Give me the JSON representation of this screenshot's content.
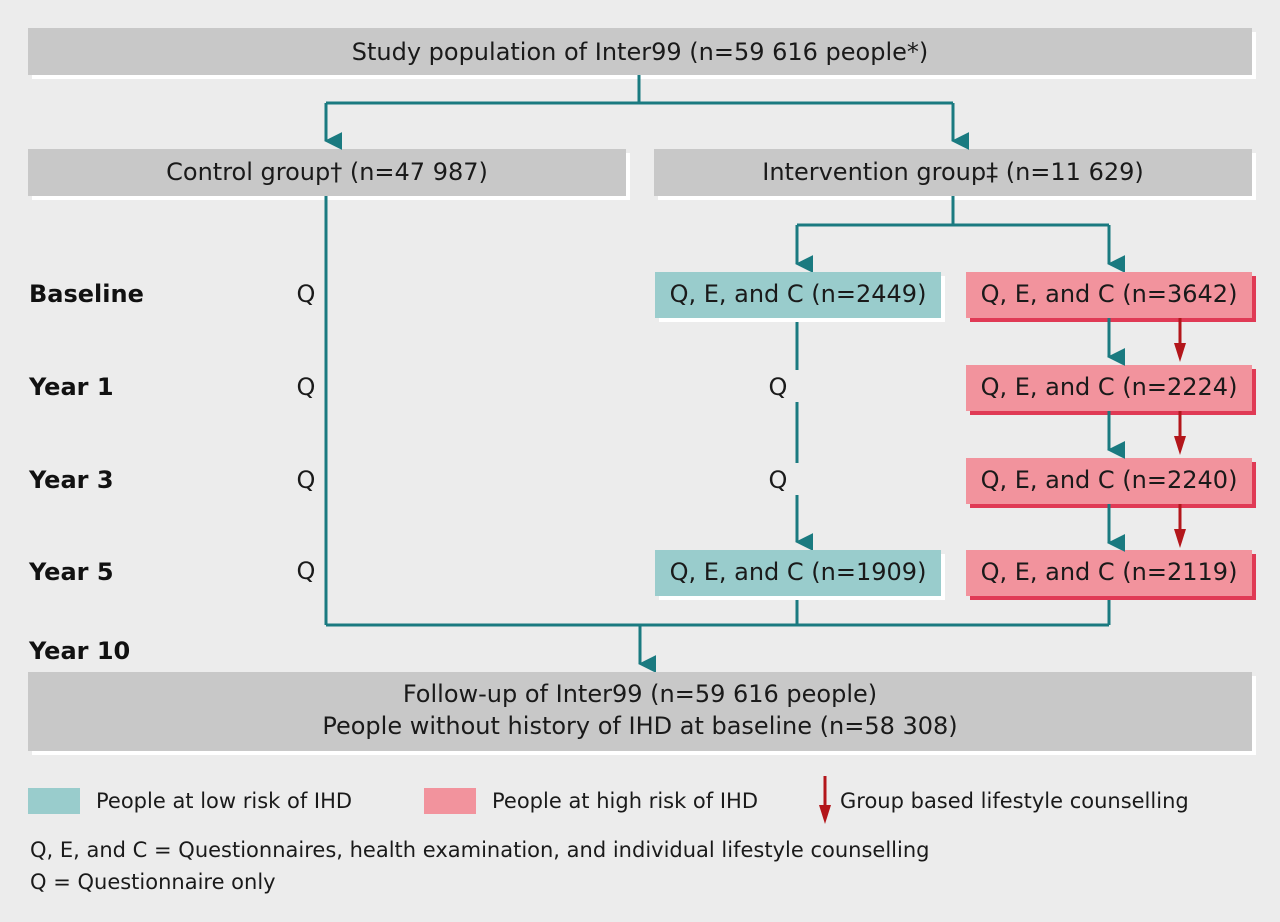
{
  "colors": {
    "background": "#ececec",
    "grey_box": "#c8c8c8",
    "grey_shadow": "#ffffff",
    "low_risk": "#99cccc",
    "high_risk": "#f2939d",
    "high_risk_shadow": "#e03a55",
    "teal_line": "#1a7a80",
    "red_arrow": "#b3161b"
  },
  "boxes": {
    "study_population": "Study population of Inter99 (n=59 616 people*)",
    "control_group": "Control  group† (n=47 987)",
    "intervention_group": "Intervention group‡ (n=11 629)",
    "low_baseline": "Q, E, and C (n=2449)",
    "low_year5": "Q, E, and C (n=1909)",
    "high_baseline": "Q, E, and C (n=3642)",
    "high_year1": "Q, E, and C (n=2224)",
    "high_year3": "Q, E, and C (n=2240)",
    "high_year5": "Q, E, and C (n=2119)",
    "followup_line1": "Follow-up of Inter99 (n=59 616 people)",
    "followup_line2": "People without history of IHD at baseline (n=58 308)"
  },
  "rows": {
    "baseline": "Baseline",
    "year1": "Year 1",
    "year3": "Year 3",
    "year5": "Year 5",
    "year10": "Year 10"
  },
  "q_marks": {
    "control_baseline": "Q",
    "control_year1": "Q",
    "control_year3": "Q",
    "control_year5": "Q",
    "low_year1": "Q",
    "low_year3": "Q"
  },
  "legend": {
    "low_risk": "People at low risk of IHD",
    "high_risk": "People at high risk of IHD",
    "group_counselling": "Group based lifestyle counselling"
  },
  "notes": {
    "qec": "Q, E, and C = Questionnaires, health examination, and individual lifestyle counselling",
    "q": "Q = Questionnaire only"
  }
}
